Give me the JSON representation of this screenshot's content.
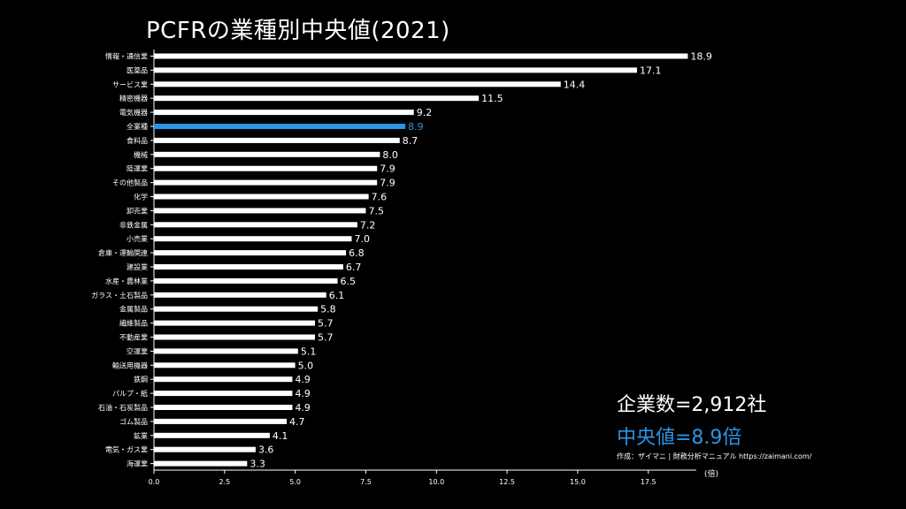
{
  "chart_data": {
    "type": "bar",
    "orientation": "horizontal",
    "title": "PCFRの業種別中央値(2021)",
    "xlabel": "(倍)",
    "xlim": [
      0,
      19.2
    ],
    "xticks": [
      "0.0",
      "2.5",
      "5.0",
      "7.5",
      "10.0",
      "12.5",
      "15.0",
      "17.5"
    ],
    "highlight_category": "全業種",
    "categories": [
      "情報・通信業",
      "医薬品",
      "サービス業",
      "精密機器",
      "電気機器",
      "全業種",
      "食料品",
      "機械",
      "陸運業",
      "その他製品",
      "化学",
      "卸売業",
      "非鉄金属",
      "小売業",
      "倉庫・運輸関連",
      "建設業",
      "水産・農林業",
      "ガラス・土石製品",
      "金属製品",
      "繊維製品",
      "不動産業",
      "空運業",
      "輸送用機器",
      "鉄鋼",
      "パルプ・紙",
      "石油・石炭製品",
      "ゴム製品",
      "鉱業",
      "電気・ガス業",
      "海運業"
    ],
    "values": [
      18.9,
      17.1,
      14.4,
      11.5,
      9.2,
      8.9,
      8.7,
      8.0,
      7.9,
      7.9,
      7.6,
      7.5,
      7.2,
      7.0,
      6.8,
      6.7,
      6.5,
      6.1,
      5.8,
      5.7,
      5.7,
      5.1,
      5.0,
      4.9,
      4.9,
      4.9,
      4.7,
      4.1,
      3.6,
      3.3
    ],
    "value_labels": [
      "18.9",
      "17.1",
      "14.4",
      "11.5",
      "9.2",
      "8.9",
      "8.7",
      "8.0",
      "7.9",
      "7.9",
      "7.6",
      "7.5",
      "7.2",
      "7.0",
      "6.8",
      "6.7",
      "6.5",
      "6.1",
      "5.8",
      "5.7",
      "5.7",
      "5.1",
      "5.0",
      "4.9",
      "4.9",
      "4.9",
      "4.7",
      "4.1",
      "3.6",
      "3.3"
    ]
  },
  "annotations": {
    "company_count": "企業数=2,912社",
    "median": "中央値=8.9倍",
    "credit": "作成：ザイマニ | 財務分析マニュアル https://zaimani.com/"
  },
  "colors": {
    "bar": "#ffffff",
    "highlight": "#2b94e6",
    "background": "#000000",
    "axis": "#ffffff"
  }
}
